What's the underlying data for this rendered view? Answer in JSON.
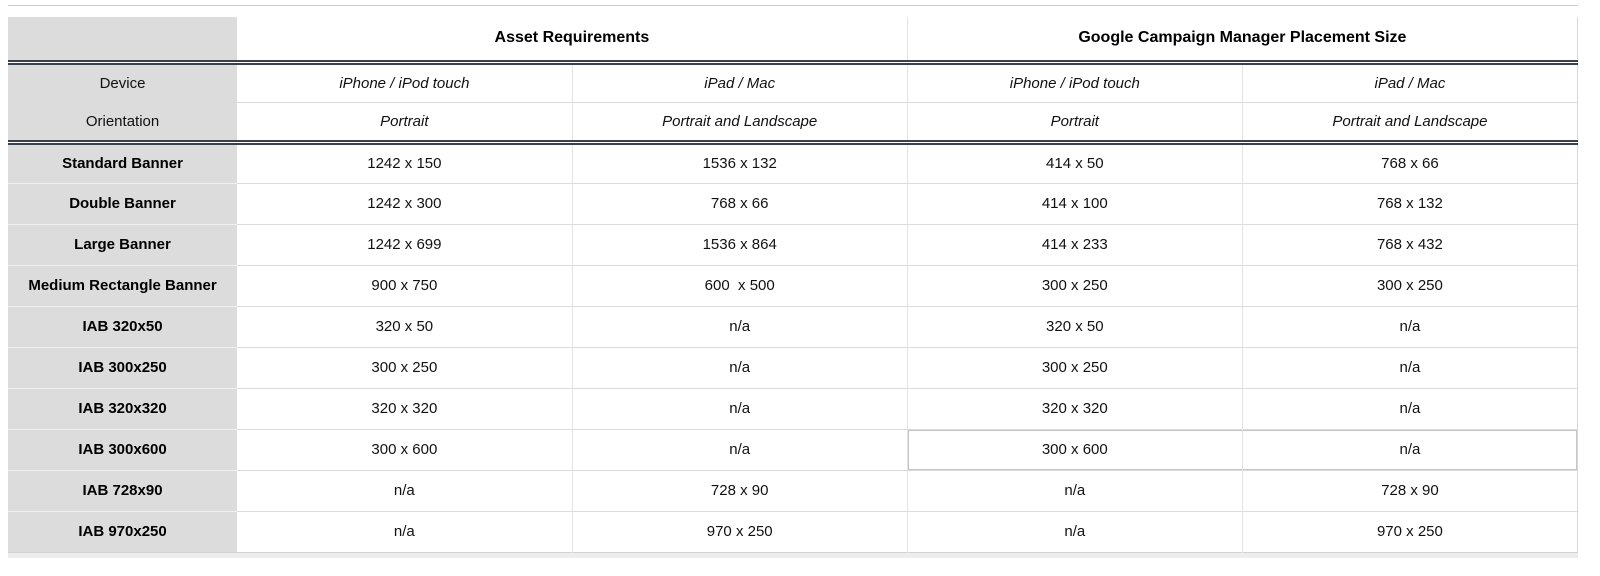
{
  "table": {
    "group_headers": [
      {
        "label": ""
      },
      {
        "label": "Asset Requirements",
        "span": 2
      },
      {
        "label": "Google Campaign Manager Placement Size",
        "span": 2
      }
    ],
    "device_row": {
      "label": "Device",
      "values": [
        "iPhone / iPod touch",
        "iPad / Mac",
        "iPhone / iPod touch",
        "iPad / Mac"
      ]
    },
    "orientation_row": {
      "label": "Orientation",
      "values": [
        "Portrait",
        "Portrait and Landscape",
        "Portrait",
        "Portrait and Landscape"
      ]
    },
    "rows": [
      {
        "label": "Standard Banner",
        "values": [
          "1242 x 150",
          "1536 x 132",
          "414 x 50",
          "768 x 66"
        ]
      },
      {
        "label": "Double Banner",
        "values": [
          "1242 x 300",
          "768 x 66",
          "414 x 100",
          "768 x 132"
        ]
      },
      {
        "label": "Large Banner",
        "values": [
          "1242 x 699",
          "1536 x 864",
          "414 x 233",
          "768 x 432"
        ]
      },
      {
        "label": "Medium Rectangle Banner",
        "values": [
          "900 x 750",
          "600  x 500",
          "300 x 250",
          "300 x 250"
        ]
      },
      {
        "label": "IAB 320x50",
        "values": [
          "320 x 50",
          "n/a",
          "320 x 50",
          "n/a"
        ]
      },
      {
        "label": "IAB 300x250",
        "values": [
          "300 x 250",
          "n/a",
          "300 x 250",
          "n/a"
        ]
      },
      {
        "label": "IAB 320x320",
        "values": [
          "320 x 320",
          "n/a",
          "320 x 320",
          "n/a"
        ]
      },
      {
        "label": "IAB 300x600",
        "values": [
          "300 x 600",
          "n/a",
          "300 x 600",
          "n/a"
        ],
        "highlight_gcm": true
      },
      {
        "label": "IAB 728x90",
        "values": [
          "n/a",
          "728 x 90",
          "n/a",
          "728 x 90"
        ]
      },
      {
        "label": "IAB 970x250",
        "values": [
          "n/a",
          "970 x 250",
          "n/a",
          "970 x 250"
        ]
      }
    ]
  },
  "colors": {
    "label_column_bg": "#dcdcdc",
    "header_divider": "#39414d",
    "row_line": "#dbdbdb",
    "highlight_outline": "#c6c6c6",
    "text": "#111111"
  }
}
